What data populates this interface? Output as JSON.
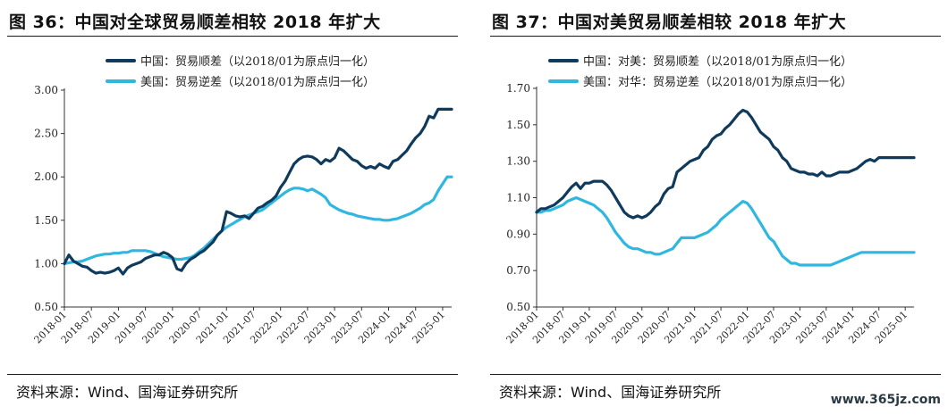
{
  "charts": [
    {
      "title": "图 36：中国对全球贸易顺差相较 2018 年扩大",
      "source": "资料来源：Wind、国海证券研究所"
    },
    {
      "title": "图 37：中国对美贸易顺差相较 2018 年扩大",
      "source": "资料来源：Wind、国海证券研究所"
    }
  ],
  "watermark": "www.365jz.com",
  "chart_data": [
    {
      "type": "line",
      "title": "图 36：中国对全球贸易顺差相较 2018 年扩大",
      "ylim": [
        0.5,
        3.0
      ],
      "yticks": [
        "0.50",
        "1.00",
        "1.50",
        "2.00",
        "2.50",
        "3.00"
      ],
      "xlim": [
        "2018-01",
        "2025-03"
      ],
      "xticks": [
        "2018-01",
        "2018-07",
        "2019-01",
        "2019-07",
        "2020-01",
        "2020-07",
        "2021-01",
        "2021-07",
        "2022-01",
        "2022-07",
        "2023-01",
        "2023-07",
        "2024-01",
        "2024-07",
        "2025-01"
      ],
      "grid": false,
      "legend_position": "top",
      "series": [
        {
          "name": "中国：贸易顺差（以2018/01为原点归一化）",
          "color": "#0f3a5c",
          "x": [
            "2018-01",
            "2018-02",
            "2018-03",
            "2018-04",
            "2018-05",
            "2018-06",
            "2018-07",
            "2018-08",
            "2018-09",
            "2018-10",
            "2018-11",
            "2018-12",
            "2019-01",
            "2019-02",
            "2019-03",
            "2019-04",
            "2019-05",
            "2019-06",
            "2019-07",
            "2019-08",
            "2019-09",
            "2019-10",
            "2019-11",
            "2019-12",
            "2020-01",
            "2020-02",
            "2020-03",
            "2020-04",
            "2020-05",
            "2020-06",
            "2020-07",
            "2020-08",
            "2020-09",
            "2020-10",
            "2020-11",
            "2020-12",
            "2021-01",
            "2021-02",
            "2021-03",
            "2021-04",
            "2021-05",
            "2021-06",
            "2021-07",
            "2021-08",
            "2021-09",
            "2021-10",
            "2021-11",
            "2021-12",
            "2022-01",
            "2022-02",
            "2022-03",
            "2022-04",
            "2022-05",
            "2022-06",
            "2022-07",
            "2022-08",
            "2022-09",
            "2022-10",
            "2022-11",
            "2022-12",
            "2023-01",
            "2023-02",
            "2023-03",
            "2023-04",
            "2023-05",
            "2023-06",
            "2023-07",
            "2023-08",
            "2023-09",
            "2023-10",
            "2023-11",
            "2023-12",
            "2024-01",
            "2024-02",
            "2024-03",
            "2024-04",
            "2024-05",
            "2024-06",
            "2024-07",
            "2024-08",
            "2024-09",
            "2024-10",
            "2024-11",
            "2024-12",
            "2025-01",
            "2025-02",
            "2025-03"
          ],
          "values": [
            1.0,
            1.1,
            1.03,
            1.0,
            0.97,
            0.96,
            0.92,
            0.89,
            0.9,
            0.89,
            0.9,
            0.92,
            0.95,
            0.88,
            0.95,
            0.98,
            1.0,
            1.02,
            1.06,
            1.08,
            1.1,
            1.1,
            1.13,
            1.11,
            1.07,
            0.94,
            0.92,
            1.0,
            1.05,
            1.08,
            1.12,
            1.15,
            1.2,
            1.25,
            1.33,
            1.38,
            1.6,
            1.58,
            1.55,
            1.54,
            1.55,
            1.52,
            1.58,
            1.64,
            1.66,
            1.7,
            1.73,
            1.78,
            1.88,
            1.95,
            2.05,
            2.15,
            2.2,
            2.23,
            2.24,
            2.23,
            2.2,
            2.15,
            2.2,
            2.18,
            2.22,
            2.33,
            2.3,
            2.25,
            2.2,
            2.18,
            2.13,
            2.1,
            2.12,
            2.1,
            2.15,
            2.12,
            2.1,
            2.18,
            2.2,
            2.25,
            2.3,
            2.38,
            2.45,
            2.5,
            2.58,
            2.7,
            2.68,
            2.78,
            2.78,
            2.78,
            2.78
          ]
        },
        {
          "name": "美国：贸易逆差（以2018/01为原点归一化）",
          "color": "#30b7e0",
          "x": [
            "2018-01",
            "2018-02",
            "2018-03",
            "2018-04",
            "2018-05",
            "2018-06",
            "2018-07",
            "2018-08",
            "2018-09",
            "2018-10",
            "2018-11",
            "2018-12",
            "2019-01",
            "2019-02",
            "2019-03",
            "2019-04",
            "2019-05",
            "2019-06",
            "2019-07",
            "2019-08",
            "2019-09",
            "2019-10",
            "2019-11",
            "2019-12",
            "2020-01",
            "2020-02",
            "2020-03",
            "2020-04",
            "2020-05",
            "2020-06",
            "2020-07",
            "2020-08",
            "2020-09",
            "2020-10",
            "2020-11",
            "2020-12",
            "2021-01",
            "2021-02",
            "2021-03",
            "2021-04",
            "2021-05",
            "2021-06",
            "2021-07",
            "2021-08",
            "2021-09",
            "2021-10",
            "2021-11",
            "2021-12",
            "2022-01",
            "2022-02",
            "2022-03",
            "2022-04",
            "2022-05",
            "2022-06",
            "2022-07",
            "2022-08",
            "2022-09",
            "2022-10",
            "2022-11",
            "2022-12",
            "2023-01",
            "2023-02",
            "2023-03",
            "2023-04",
            "2023-05",
            "2023-06",
            "2023-07",
            "2023-08",
            "2023-09",
            "2023-10",
            "2023-11",
            "2023-12",
            "2024-01",
            "2024-02",
            "2024-03",
            "2024-04",
            "2024-05",
            "2024-06",
            "2024-07",
            "2024-08",
            "2024-09",
            "2024-10",
            "2024-11",
            "2024-12",
            "2025-01",
            "2025-02",
            "2025-03"
          ],
          "values": [
            1.0,
            1.01,
            1.02,
            1.02,
            1.03,
            1.05,
            1.07,
            1.09,
            1.1,
            1.11,
            1.11,
            1.12,
            1.12,
            1.13,
            1.13,
            1.15,
            1.15,
            1.15,
            1.15,
            1.14,
            1.12,
            1.1,
            1.08,
            1.07,
            1.06,
            1.05,
            1.05,
            1.06,
            1.07,
            1.1,
            1.14,
            1.18,
            1.23,
            1.28,
            1.33,
            1.38,
            1.42,
            1.45,
            1.48,
            1.51,
            1.54,
            1.56,
            1.58,
            1.6,
            1.62,
            1.66,
            1.7,
            1.74,
            1.78,
            1.82,
            1.85,
            1.87,
            1.87,
            1.86,
            1.84,
            1.86,
            1.83,
            1.8,
            1.76,
            1.68,
            1.65,
            1.62,
            1.6,
            1.58,
            1.57,
            1.55,
            1.54,
            1.53,
            1.52,
            1.51,
            1.51,
            1.5,
            1.5,
            1.51,
            1.52,
            1.54,
            1.56,
            1.58,
            1.61,
            1.64,
            1.68,
            1.7,
            1.74,
            1.84,
            1.92,
            2.0,
            2.0
          ]
        }
      ]
    },
    {
      "type": "line",
      "title": "图 37：中国对美贸易顺差相较 2018 年扩大",
      "ylim": [
        0.5,
        1.7
      ],
      "yticks": [
        "0.50",
        "0.70",
        "0.90",
        "1.10",
        "1.30",
        "1.50",
        "1.70"
      ],
      "xlim": [
        "2018-01",
        "2025-03"
      ],
      "xticks": [
        "2018-01",
        "2018-07",
        "2019-01",
        "2019-07",
        "2020-01",
        "2020-07",
        "2021-01",
        "2021-07",
        "2022-01",
        "2022-07",
        "2023-01",
        "2023-07",
        "2024-01",
        "2024-07",
        "2025-01"
      ],
      "grid": false,
      "legend_position": "top",
      "series": [
        {
          "name": "中国：对美：贸易顺差（以2018/01为原点归一化）",
          "color": "#0f3a5c",
          "x": [
            "2018-01",
            "2018-02",
            "2018-03",
            "2018-04",
            "2018-05",
            "2018-06",
            "2018-07",
            "2018-08",
            "2018-09",
            "2018-10",
            "2018-11",
            "2018-12",
            "2019-01",
            "2019-02",
            "2019-03",
            "2019-04",
            "2019-05",
            "2019-06",
            "2019-07",
            "2019-08",
            "2019-09",
            "2019-10",
            "2019-11",
            "2019-12",
            "2020-01",
            "2020-02",
            "2020-03",
            "2020-04",
            "2020-05",
            "2020-06",
            "2020-07",
            "2020-08",
            "2020-09",
            "2020-10",
            "2020-11",
            "2020-12",
            "2021-01",
            "2021-02",
            "2021-03",
            "2021-04",
            "2021-05",
            "2021-06",
            "2021-07",
            "2021-08",
            "2021-09",
            "2021-10",
            "2021-11",
            "2021-12",
            "2022-01",
            "2022-02",
            "2022-03",
            "2022-04",
            "2022-05",
            "2022-06",
            "2022-07",
            "2022-08",
            "2022-09",
            "2022-10",
            "2022-11",
            "2022-12",
            "2023-01",
            "2023-02",
            "2023-03",
            "2023-04",
            "2023-05",
            "2023-06",
            "2023-07",
            "2023-08",
            "2023-09",
            "2023-10",
            "2023-11",
            "2023-12",
            "2024-01",
            "2024-02",
            "2024-03",
            "2024-04",
            "2024-05",
            "2024-06",
            "2024-07",
            "2024-08",
            "2024-09",
            "2024-10",
            "2024-11",
            "2024-12",
            "2025-01",
            "2025-02",
            "2025-03"
          ],
          "values": [
            1.02,
            1.04,
            1.04,
            1.05,
            1.06,
            1.08,
            1.1,
            1.13,
            1.16,
            1.18,
            1.15,
            1.18,
            1.18,
            1.19,
            1.19,
            1.19,
            1.17,
            1.14,
            1.1,
            1.06,
            1.02,
            1.0,
            0.99,
            1.0,
            0.99,
            1.0,
            1.02,
            1.05,
            1.07,
            1.12,
            1.15,
            1.16,
            1.24,
            1.26,
            1.28,
            1.3,
            1.31,
            1.32,
            1.36,
            1.38,
            1.42,
            1.44,
            1.45,
            1.48,
            1.5,
            1.53,
            1.56,
            1.58,
            1.57,
            1.54,
            1.5,
            1.46,
            1.44,
            1.42,
            1.38,
            1.36,
            1.32,
            1.3,
            1.26,
            1.25,
            1.24,
            1.24,
            1.23,
            1.23,
            1.22,
            1.24,
            1.22,
            1.22,
            1.23,
            1.24,
            1.24,
            1.24,
            1.25,
            1.26,
            1.28,
            1.3,
            1.31,
            1.3,
            1.32,
            1.32,
            1.32,
            1.32,
            1.32,
            1.32,
            1.32,
            1.32,
            1.32
          ]
        },
        {
          "name": "美国：对华：贸易逆差（以2018/01为原点归一化）",
          "color": "#30b7e0",
          "x": [
            "2018-01",
            "2018-02",
            "2018-03",
            "2018-04",
            "2018-05",
            "2018-06",
            "2018-07",
            "2018-08",
            "2018-09",
            "2018-10",
            "2018-11",
            "2018-12",
            "2019-01",
            "2019-02",
            "2019-03",
            "2019-04",
            "2019-05",
            "2019-06",
            "2019-07",
            "2019-08",
            "2019-09",
            "2019-10",
            "2019-11",
            "2019-12",
            "2020-01",
            "2020-02",
            "2020-03",
            "2020-04",
            "2020-05",
            "2020-06",
            "2020-07",
            "2020-08",
            "2020-09",
            "2020-10",
            "2020-11",
            "2020-12",
            "2021-01",
            "2021-02",
            "2021-03",
            "2021-04",
            "2021-05",
            "2021-06",
            "2021-07",
            "2021-08",
            "2021-09",
            "2021-10",
            "2021-11",
            "2021-12",
            "2022-01",
            "2022-02",
            "2022-03",
            "2022-04",
            "2022-05",
            "2022-06",
            "2022-07",
            "2022-08",
            "2022-09",
            "2022-10",
            "2022-11",
            "2022-12",
            "2023-01",
            "2023-02",
            "2023-03",
            "2023-04",
            "2023-05",
            "2023-06",
            "2023-07",
            "2023-08",
            "2023-09",
            "2023-10",
            "2023-11",
            "2023-12",
            "2024-01",
            "2024-02",
            "2024-03",
            "2024-04",
            "2024-05",
            "2024-06",
            "2024-07",
            "2024-08",
            "2024-09",
            "2024-10",
            "2024-11",
            "2024-12",
            "2025-01",
            "2025-02",
            "2025-03"
          ],
          "values": [
            1.02,
            1.02,
            1.03,
            1.03,
            1.04,
            1.05,
            1.06,
            1.08,
            1.09,
            1.1,
            1.09,
            1.08,
            1.07,
            1.06,
            1.04,
            1.02,
            0.99,
            0.95,
            0.91,
            0.88,
            0.85,
            0.83,
            0.82,
            0.82,
            0.81,
            0.8,
            0.8,
            0.79,
            0.79,
            0.8,
            0.81,
            0.82,
            0.85,
            0.88,
            0.88,
            0.88,
            0.88,
            0.89,
            0.9,
            0.91,
            0.93,
            0.95,
            0.98,
            1.0,
            1.02,
            1.04,
            1.06,
            1.08,
            1.07,
            1.04,
            1.0,
            0.96,
            0.92,
            0.88,
            0.86,
            0.82,
            0.78,
            0.76,
            0.74,
            0.74,
            0.73,
            0.73,
            0.73,
            0.73,
            0.73,
            0.73,
            0.73,
            0.73,
            0.74,
            0.75,
            0.76,
            0.77,
            0.78,
            0.79,
            0.8,
            0.8,
            0.8,
            0.8,
            0.8,
            0.8,
            0.8,
            0.8,
            0.8,
            0.8,
            0.8,
            0.8,
            0.8
          ]
        }
      ]
    }
  ]
}
